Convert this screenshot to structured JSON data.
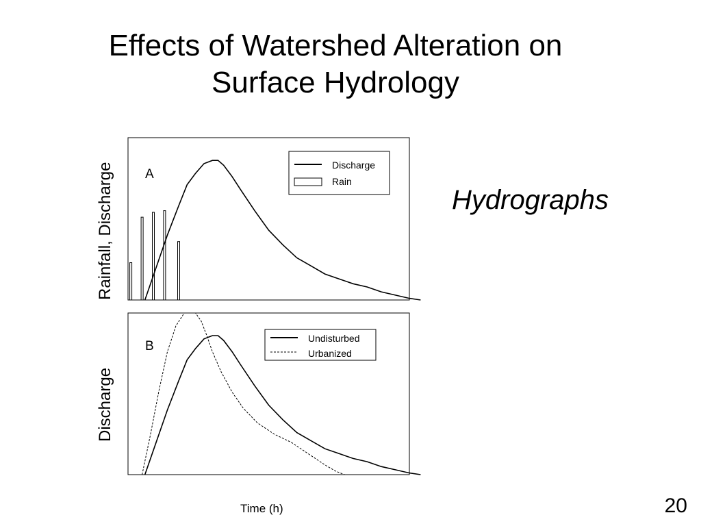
{
  "slide": {
    "title_lines": [
      "Effects of Watershed Alteration on",
      "Surface Hydrology"
    ],
    "subtitle": "Hydrographs",
    "page_number": "20"
  },
  "chart_data": [
    {
      "type": "line",
      "panel_label": "A",
      "title": "",
      "xlabel": "",
      "ylabel": "Rainfall, Discharge",
      "xlim": [
        0,
        100
      ],
      "ylim": [
        0,
        100
      ],
      "legend": {
        "placement": "top-right",
        "entries": [
          "Discharge",
          "Rain"
        ]
      },
      "series": [
        {
          "name": "Discharge",
          "style": "solid",
          "x": [
            6,
            10,
            14,
            18,
            21,
            24,
            27,
            30,
            32,
            34,
            37,
            40,
            45,
            50,
            55,
            60,
            65,
            70,
            75,
            80,
            85,
            90,
            95,
            100,
            104
          ],
          "y": [
            0,
            20,
            40,
            58,
            71,
            78,
            84,
            86,
            86,
            83,
            76,
            68,
            55,
            43,
            34,
            26,
            21,
            16,
            13,
            10,
            8,
            5,
            3,
            1,
            0
          ]
        },
        {
          "name": "Rain",
          "style": "bars",
          "x": [
            1,
            5,
            9,
            13,
            18
          ],
          "y": [
            23,
            51,
            54,
            55,
            36
          ]
        }
      ]
    },
    {
      "type": "line",
      "panel_label": "B",
      "title": "",
      "xlabel": "Time (h)",
      "ylabel": "Discharge",
      "xlim": [
        0,
        100
      ],
      "ylim": [
        0,
        100
      ],
      "legend": {
        "placement": "top-right",
        "entries": [
          "Undisturbed",
          "Urbanized"
        ]
      },
      "series": [
        {
          "name": "Undisturbed",
          "style": "solid",
          "x": [
            6,
            10,
            14,
            18,
            21,
            24,
            27,
            30,
            32,
            34,
            37,
            40,
            45,
            50,
            55,
            60,
            65,
            70,
            75,
            80,
            85,
            90,
            95,
            100,
            104
          ],
          "y": [
            0,
            20,
            40,
            58,
            71,
            78,
            84,
            86,
            86,
            83,
            76,
            68,
            55,
            43,
            34,
            26,
            21,
            16,
            13,
            10,
            8,
            5,
            3,
            1,
            0
          ]
        },
        {
          "name": "Urbanized",
          "style": "dashed",
          "x": [
            5,
            8,
            11,
            14,
            17,
            20,
            22,
            24,
            26,
            28,
            30,
            33,
            37,
            41,
            46,
            52,
            58,
            64,
            70,
            74,
            77
          ],
          "y": [
            0,
            25,
            52,
            76,
            92,
            100,
            102,
            100,
            95,
            86,
            76,
            64,
            51,
            41,
            32,
            25,
            20,
            13,
            6,
            2,
            0
          ]
        }
      ]
    }
  ]
}
